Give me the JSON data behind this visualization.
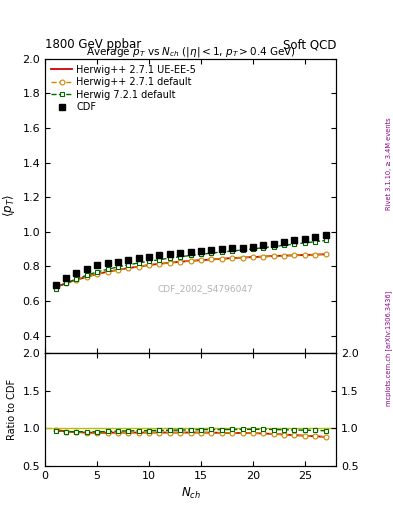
{
  "title_top": "1800 GeV ppbar",
  "title_right": "Soft QCD",
  "plot_title": "Average $p_T$ vs $N_{ch}$ ($|\\eta| < 1$, $p_T > 0.4$ GeV)",
  "xlabel": "$N_{ch}$",
  "ylabel_main": "$\\langle p_T \\rangle$",
  "ylabel_ratio": "Ratio to CDF",
  "watermark": "CDF_2002_S4796047",
  "right_label_top": "Rivet 3.1.10, ≥ 3.4M events",
  "right_label_bottom": "mcplots.cern.ch [arXiv:1306.3436]",
  "xlim": [
    0,
    28
  ],
  "ylim_main": [
    0.3,
    2.0
  ],
  "ylim_ratio": [
    0.5,
    2.0
  ],
  "nch_cdf": [
    1,
    2,
    3,
    4,
    5,
    6,
    7,
    8,
    9,
    10,
    11,
    12,
    13,
    14,
    15,
    16,
    17,
    18,
    19,
    20,
    21,
    22,
    23,
    24,
    25,
    26,
    27
  ],
  "avgpt_cdf": [
    0.695,
    0.735,
    0.762,
    0.785,
    0.806,
    0.818,
    0.828,
    0.838,
    0.848,
    0.857,
    0.864,
    0.871,
    0.877,
    0.882,
    0.887,
    0.892,
    0.899,
    0.904,
    0.909,
    0.914,
    0.921,
    0.931,
    0.941,
    0.951,
    0.961,
    0.971,
    0.983
  ],
  "nch_hw271": [
    1,
    2,
    3,
    4,
    5,
    6,
    7,
    8,
    9,
    10,
    11,
    12,
    13,
    14,
    15,
    16,
    17,
    18,
    19,
    20,
    21,
    22,
    23,
    24,
    25,
    26,
    27
  ],
  "avgpt_hw271": [
    0.68,
    0.703,
    0.722,
    0.74,
    0.756,
    0.769,
    0.78,
    0.79,
    0.799,
    0.808,
    0.815,
    0.821,
    0.827,
    0.832,
    0.836,
    0.84,
    0.844,
    0.848,
    0.851,
    0.854,
    0.857,
    0.86,
    0.862,
    0.864,
    0.866,
    0.868,
    0.87
  ],
  "nch_hw271ue": [
    1,
    2,
    3,
    4,
    5,
    6,
    7,
    8,
    9,
    10,
    11,
    12,
    13,
    14,
    15,
    16,
    17,
    18,
    19,
    20,
    21,
    22,
    23,
    24,
    25,
    26,
    27
  ],
  "avgpt_hw271ue": [
    0.68,
    0.703,
    0.722,
    0.74,
    0.756,
    0.769,
    0.78,
    0.79,
    0.799,
    0.808,
    0.815,
    0.821,
    0.827,
    0.832,
    0.836,
    0.84,
    0.844,
    0.848,
    0.851,
    0.854,
    0.857,
    0.86,
    0.862,
    0.864,
    0.866,
    0.868,
    0.87
  ],
  "nch_hw721": [
    1,
    2,
    3,
    4,
    5,
    6,
    7,
    8,
    9,
    10,
    11,
    12,
    13,
    14,
    15,
    16,
    17,
    18,
    19,
    20,
    21,
    22,
    23,
    24,
    25,
    26,
    27
  ],
  "avgpt_hw721": [
    0.672,
    0.703,
    0.727,
    0.749,
    0.768,
    0.783,
    0.797,
    0.809,
    0.82,
    0.83,
    0.839,
    0.848,
    0.856,
    0.863,
    0.87,
    0.877,
    0.883,
    0.889,
    0.895,
    0.901,
    0.908,
    0.915,
    0.922,
    0.929,
    0.936,
    0.943,
    0.95
  ],
  "color_cdf": "#000000",
  "color_hw271": "#cc8800",
  "color_hw271ue": "#cc0000",
  "color_hw721": "#006600",
  "legend_entries": [
    "CDF",
    "Herwig++ 2.7.1 default",
    "Herwig++ 2.7.1 UE-EE-5",
    "Herwig 7.2.1 default"
  ],
  "yticks_main": [
    0.4,
    0.6,
    0.8,
    1.0,
    1.2,
    1.4,
    1.6,
    1.8,
    2.0
  ],
  "yticks_ratio": [
    0.5,
    1.0,
    1.5,
    2.0
  ],
  "xticks": [
    0,
    5,
    10,
    15,
    20,
    25
  ]
}
